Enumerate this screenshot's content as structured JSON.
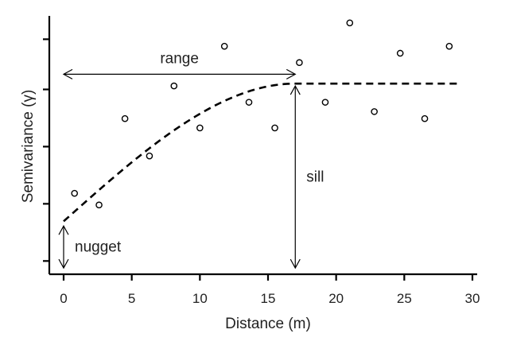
{
  "chart_data": {
    "type": "scatter",
    "title": "",
    "xlabel": "Distance (m)",
    "ylabel": "Semivariance (γ)",
    "xlim": [
      0,
      30
    ],
    "ylim": [
      0,
      1
    ],
    "xticks": [
      "0",
      "5",
      "10",
      "15",
      "20",
      "25",
      "30"
    ],
    "yticks": [
      0.05,
      0.295,
      0.54,
      0.785,
      1.0
    ],
    "points": [
      {
        "x": 0.8,
        "y": 0.34
      },
      {
        "x": 2.6,
        "y": 0.29
      },
      {
        "x": 4.5,
        "y": 0.66
      },
      {
        "x": 6.3,
        "y": 0.5
      },
      {
        "x": 8.1,
        "y": 0.8
      },
      {
        "x": 10.0,
        "y": 0.62
      },
      {
        "x": 11.8,
        "y": 0.97
      },
      {
        "x": 13.6,
        "y": 0.73
      },
      {
        "x": 15.5,
        "y": 0.62
      },
      {
        "x": 17.3,
        "y": 0.9
      },
      {
        "x": 19.2,
        "y": 0.73
      },
      {
        "x": 21.0,
        "y": 1.07
      },
      {
        "x": 22.8,
        "y": 0.69
      },
      {
        "x": 24.7,
        "y": 0.94
      },
      {
        "x": 26.5,
        "y": 0.66
      },
      {
        "x": 28.3,
        "y": 0.97
      }
    ],
    "model": {
      "type": "spherical",
      "nugget": 0.22,
      "sill": 0.81,
      "range": 17.0,
      "x_max": 29.0
    },
    "annotations": [
      {
        "label": "range",
        "kind": "horizontal",
        "from": [
          0,
          0.85
        ],
        "to": [
          17.0,
          0.85
        ]
      },
      {
        "label": "sill",
        "kind": "vertical",
        "from": [
          17.0,
          0.02
        ],
        "to": [
          17.0,
          0.8
        ]
      },
      {
        "label": "nugget",
        "kind": "vertical",
        "from": [
          0,
          0.02
        ],
        "to": [
          0,
          0.2
        ]
      }
    ]
  }
}
